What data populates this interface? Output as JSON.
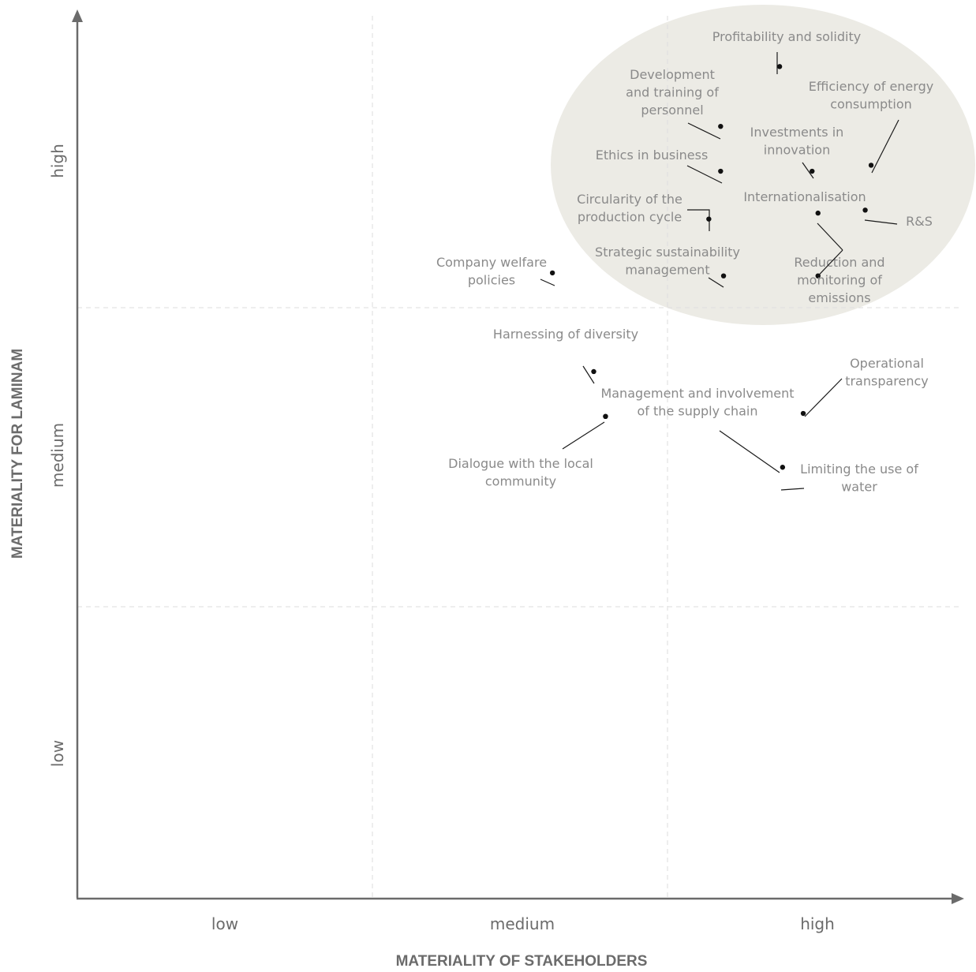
{
  "chart_data": {
    "type": "scatter",
    "xlabel": "MATERIALITY OF STAKEHOLDERS",
    "ylabel": "MATERIALITY FOR LAMINAM",
    "x_ticks": [
      "low",
      "medium",
      "high"
    ],
    "y_ticks": [
      "low",
      "medium",
      "high"
    ],
    "xlim": [
      0,
      3
    ],
    "ylim": [
      0,
      3
    ],
    "grid": true,
    "highlight_color": "#ecebe5",
    "points": [
      {
        "label": "Profitability and solidity",
        "x": 2.38,
        "y": 2.78
      },
      {
        "label": "Development and training of personnel",
        "x": 2.18,
        "y": 2.58
      },
      {
        "label": "Efficiency of energy consumption",
        "x": 2.69,
        "y": 2.45
      },
      {
        "label": "Investments in innovation",
        "x": 2.49,
        "y": 2.43
      },
      {
        "label": "Ethics in business",
        "x": 2.18,
        "y": 2.43
      },
      {
        "label": "Internationalisation",
        "x": 2.51,
        "y": 2.29
      },
      {
        "label": "R&S",
        "x": 2.67,
        "y": 2.3
      },
      {
        "label": "Circularity of the production cycle",
        "x": 2.14,
        "y": 2.27
      },
      {
        "label": "Strategic sustainability management",
        "x": 2.19,
        "y": 2.08
      },
      {
        "label": "Reduction and monitoring of emissions",
        "x": 2.51,
        "y": 2.08
      },
      {
        "label": "Company welfare policies",
        "x": 1.61,
        "y": 2.09
      },
      {
        "label": "Harnessing of diversity",
        "x": 1.75,
        "y": 1.76
      },
      {
        "label": "Management and involvement of the supply chain",
        "x": 1.79,
        "y": 1.61
      },
      {
        "label": "Operational transparency",
        "x": 2.46,
        "y": 1.62
      },
      {
        "label": "Dialogue with the local community",
        "x": 1.79,
        "y": 1.61
      },
      {
        "label": "Limiting the use of water",
        "x": 2.39,
        "y": 1.44
      }
    ]
  }
}
